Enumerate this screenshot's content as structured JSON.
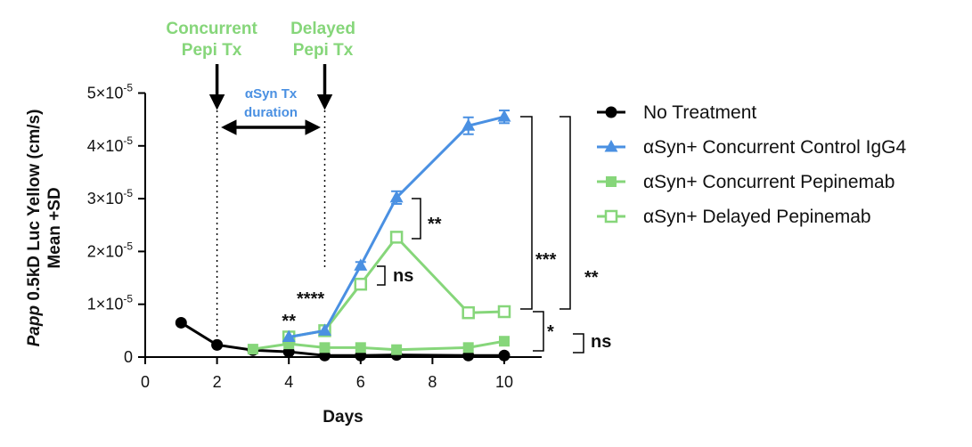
{
  "chart_data": {
    "type": "line",
    "xlabel": "Days",
    "ylabel_italic": "Papp",
    "ylabel_rest": " 0.5kD Luc Yellow (cm/s)",
    "ylabel_line2": "Mean +SD",
    "xlim": [
      0,
      11
    ],
    "ylim": [
      0,
      5e-05
    ],
    "x_ticks": [
      0,
      2,
      4,
      6,
      8,
      10
    ],
    "y_ticks": [
      {
        "value": 0,
        "base": "0",
        "exp": ""
      },
      {
        "value": 1e-05,
        "base": "1×10",
        "exp": "-5"
      },
      {
        "value": 2e-05,
        "base": "2×10",
        "exp": "-5"
      },
      {
        "value": 3e-05,
        "base": "3×10",
        "exp": "-5"
      },
      {
        "value": 4e-05,
        "base": "4×10",
        "exp": "-5"
      },
      {
        "value": 5e-05,
        "base": "5×10",
        "exp": "-5"
      }
    ],
    "series": [
      {
        "name": "No Treatment",
        "marker": "circle-filled",
        "color": "#000000",
        "x": [
          1,
          2,
          3,
          4,
          5,
          6,
          7,
          9,
          10
        ],
        "y": [
          6.5e-06,
          2.3e-06,
          1.3e-06,
          1e-06,
          3e-07,
          3e-07,
          4e-07,
          3e-07,
          3e-07
        ]
      },
      {
        "name": "αSyn+ Concurrent Pepinemab",
        "marker": "square-filled",
        "color": "#86d67a",
        "x": [
          3,
          4,
          5,
          6,
          7,
          9,
          10
        ],
        "y": [
          1.5e-06,
          2.5e-06,
          1.8e-06,
          1.8e-06,
          1.4e-06,
          1.8e-06,
          3e-06
        ]
      },
      {
        "name": "αSyn+ Delayed Pepinemab",
        "marker": "square-open",
        "color": "#86d67a",
        "x": [
          4,
          5,
          6,
          7,
          9,
          10
        ],
        "y": [
          3.8e-06,
          5e-06,
          1.38e-05,
          2.27e-05,
          8.4e-06,
          8.6e-06
        ]
      },
      {
        "name": "αSyn+ Concurrent Control IgG4",
        "marker": "triangle-filled",
        "color": "#4a90e2",
        "x": [
          4,
          5,
          6,
          7,
          9,
          10
        ],
        "y": [
          3.8e-06,
          5e-06,
          1.73e-05,
          3.02e-05,
          4.38e-05,
          4.55e-05
        ],
        "error": [
          0,
          0,
          7e-07,
          1.2e-06,
          1.6e-06,
          1.2e-06
        ]
      }
    ],
    "legend": {
      "placement": "right",
      "entries": [
        {
          "label": "No Treatment",
          "marker": "circle-filled",
          "color": "#000000"
        },
        {
          "label": "αSyn+ Concurrent Control IgG4",
          "marker": "triangle-filled",
          "color": "#4a90e2"
        },
        {
          "label": "αSyn+ Concurrent Pepinemab",
          "marker": "square-filled",
          "color": "#86d67a"
        },
        {
          "label": "αSyn+ Delayed Pepinemab",
          "marker": "square-open",
          "color": "#86d67a"
        }
      ]
    },
    "annotations": {
      "concurrent_line1": "Concurrent",
      "concurrent_line2": "Pepi Tx",
      "concurrent_day": 2,
      "delayed_line1": "Delayed",
      "delayed_line2": "Pepi Tx",
      "delayed_day": 5,
      "duration_line1": "αSyn Tx",
      "duration_line2": "duration"
    },
    "significance": {
      "day4": "**",
      "day5": "****",
      "day6": "ns",
      "day7": "**",
      "bracket_inner_top": "***",
      "bracket_outer_top": "**",
      "bracket_inner_bottom": "*",
      "bracket_outer_bottom": "ns"
    }
  }
}
